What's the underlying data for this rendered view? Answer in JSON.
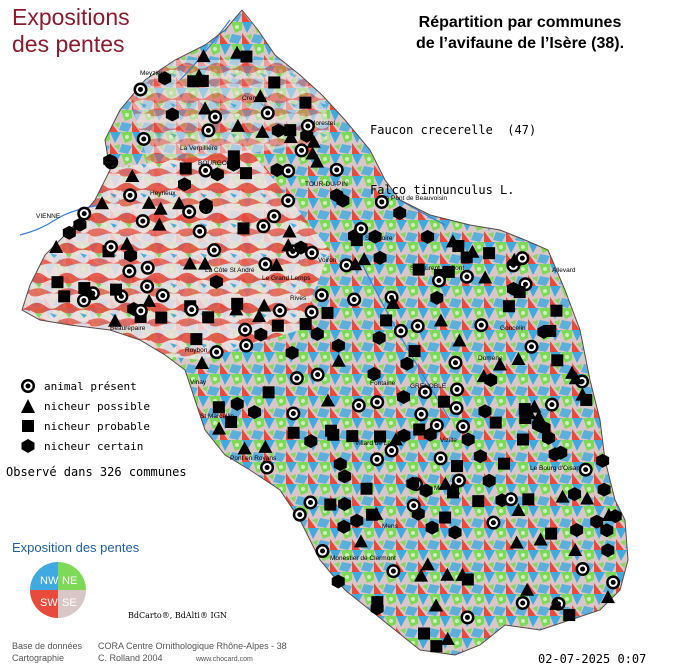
{
  "header": {
    "title_line1": "Expositions",
    "title_line2": "des pentes",
    "subtitle_line1": "Répartition par communes",
    "subtitle_line2": "de l’avifaune de l’Isère (38)."
  },
  "species": {
    "common_name": "Faucon crecerelle  (47)",
    "latin_name": "Falco tinnunculus L."
  },
  "legend": {
    "items": [
      {
        "label": "animal présent",
        "symbol": "target-circle"
      },
      {
        "label": "nicheur possible",
        "symbol": "triangle"
      },
      {
        "label": "nicheur probable",
        "symbol": "square"
      },
      {
        "label": "nicheur certain",
        "symbol": "hexagon"
      }
    ]
  },
  "observed": "Observé dans 326 communes",
  "slopes": {
    "title": "Exposition des pentes",
    "quadrants": [
      {
        "label": "NW",
        "color": "#3fa9e0"
      },
      {
        "label": "NE",
        "color": "#7ed957"
      },
      {
        "label": "SW",
        "color": "#e84b3c"
      },
      {
        "label": "SE",
        "color": "#d9c7c7"
      }
    ]
  },
  "map_labels": [
    "VIENNE",
    "BOURGOIN",
    "Crémieu",
    "Morestel",
    "TOUR-DU-PIN",
    "Le Pont de Beauvoisin",
    "St Geoire",
    "Voiron",
    "Rives",
    "St Laurent du Pont",
    "Vinay",
    "St Marcellin",
    "Pont en Royans",
    "GRENOBLE",
    "Vizille",
    "Domène",
    "Goncelin",
    "Allevard",
    "Fontaine",
    "Villard de Lans",
    "Mens",
    "Monestier de Clermont",
    "Le Bourg d'Oisans",
    "La Mure",
    "Beaurepaire",
    "La Côte St André",
    "Roybon",
    "Le Grand Lemps",
    "Heyrieux",
    "Meyzieu",
    "La Verpillière"
  ],
  "copyright": "BdCarto®, BdAlti® IGN",
  "credits": {
    "database_label": "Base de données",
    "database_value": "CORA Centre Ornithologique Rhône-Alpes - 38",
    "cartography_label": "Cartographie",
    "cartography_value": "C. Rolland 2004",
    "website": "www.chocard.com"
  },
  "date": "02-07-2025 0:07",
  "colors": {
    "title": "#8b1a2e",
    "slope_title": "#1f5fa8",
    "nw": "#3fa9e0",
    "ne": "#7ed957",
    "sw": "#e84b3c",
    "se": "#d9c7c7",
    "river": "#3a7fd5"
  }
}
